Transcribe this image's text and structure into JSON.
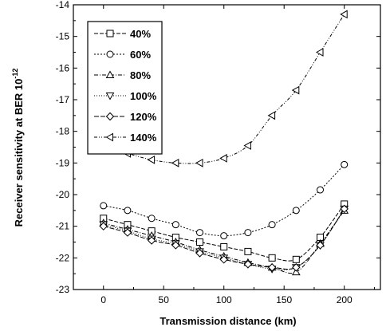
{
  "chart_data": {
    "type": "line",
    "title": "",
    "xlabel": "Transmission distance (km)",
    "ylabel_main": "Receiver sensitivity at BER 10",
    "ylabel_exp": "-12",
    "xlim": [
      -25,
      230
    ],
    "ylim": [
      -23,
      -14
    ],
    "xticks": [
      0,
      50,
      100,
      150,
      200
    ],
    "yticks": [
      -14,
      -15,
      -16,
      -17,
      -18,
      -19,
      -20,
      -21,
      -22,
      -23
    ],
    "grid": false,
    "legend_position": "top-left",
    "series": [
      {
        "name": "40%",
        "marker": "square",
        "x": [
          0,
          20,
          40,
          60,
          80,
          100,
          120,
          140,
          160,
          180,
          200
        ],
        "y": [
          -20.75,
          -20.95,
          -21.15,
          -21.35,
          -21.5,
          -21.65,
          -21.8,
          -22.0,
          -22.05,
          -21.35,
          -20.3
        ]
      },
      {
        "name": "60%",
        "marker": "circle",
        "x": [
          0,
          20,
          40,
          60,
          80,
          100,
          120,
          140,
          160,
          180,
          200
        ],
        "y": [
          -20.35,
          -20.5,
          -20.75,
          -20.95,
          -21.2,
          -21.3,
          -21.2,
          -20.95,
          -20.5,
          -19.85,
          -19.05
        ]
      },
      {
        "name": "80%",
        "marker": "triangle-up",
        "x": [
          0,
          20,
          40,
          60,
          80,
          100,
          120,
          140,
          160,
          180,
          200
        ],
        "y": [
          -20.9,
          -21.1,
          -21.3,
          -21.5,
          -21.75,
          -21.95,
          -22.15,
          -22.3,
          -22.45,
          -21.55,
          -20.5
        ]
      },
      {
        "name": "100%",
        "marker": "triangle-down",
        "x": [
          0,
          20,
          40,
          60,
          80,
          100,
          120,
          140,
          160,
          180,
          200
        ],
        "y": [
          -20.95,
          -21.15,
          -21.4,
          -21.55,
          -21.8,
          -22.0,
          -22.2,
          -22.35,
          -22.3,
          -21.6,
          -20.45
        ]
      },
      {
        "name": "120%",
        "marker": "diamond",
        "x": [
          0,
          20,
          40,
          60,
          80,
          100,
          120,
          140,
          160,
          180,
          200
        ],
        "y": [
          -21.0,
          -21.2,
          -21.45,
          -21.6,
          -21.85,
          -22.05,
          -22.2,
          -22.3,
          -22.3,
          -21.6,
          -20.45
        ]
      },
      {
        "name": "140%",
        "marker": "triangle-left",
        "x": [
          0,
          20,
          40,
          60,
          80,
          100,
          120,
          140,
          160,
          180,
          200
        ],
        "y": [
          -18.5,
          -18.7,
          -18.9,
          -19.0,
          -19.0,
          -18.85,
          -18.45,
          -17.5,
          -16.7,
          -15.5,
          -14.3
        ]
      }
    ]
  }
}
